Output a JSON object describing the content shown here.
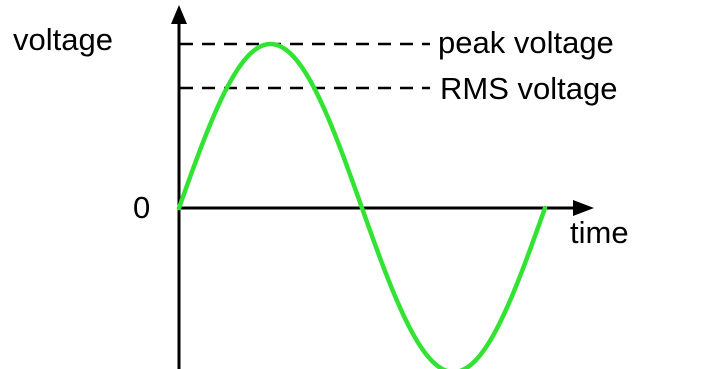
{
  "diagram": {
    "labels": {
      "y_axis": "voltage",
      "x_axis": "time",
      "origin": "0",
      "peak": "peak voltage",
      "rms": "RMS voltage"
    },
    "colors": {
      "wave": "#33e333",
      "axes": "#000000",
      "dashed_lines": "#000000",
      "background": "#ffffff"
    },
    "wave": {
      "type": "sine",
      "cycles": 1
    }
  }
}
